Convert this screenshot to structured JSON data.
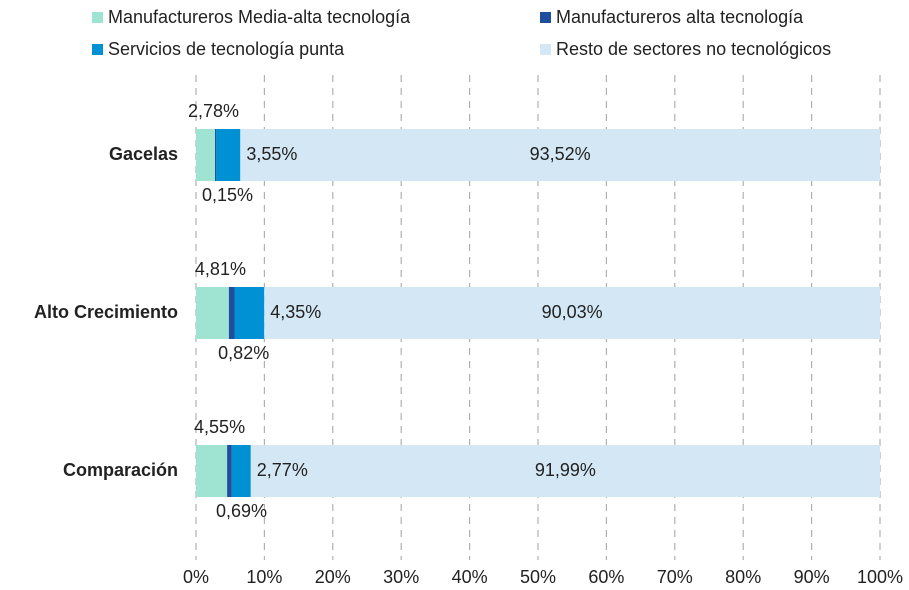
{
  "chart_data": {
    "type": "stacked_barh",
    "categories": [
      "Gacelas",
      "Alto Crecimiento",
      "Comparación"
    ],
    "series": [
      {
        "name": "Manufactureros Media-alta tecnología",
        "color": "#9fe4d3",
        "values": [
          2.78,
          4.81,
          4.55
        ],
        "value_labels": [
          "2,78%",
          "4,81%",
          "4,55%"
        ]
      },
      {
        "name": "Manufactureros alta tecnología",
        "color": "#1f4e9c",
        "values": [
          0.15,
          0.82,
          0.69
        ],
        "value_labels": [
          "0,15%",
          "0,82%",
          "0,69%"
        ]
      },
      {
        "name": "Servicios de tecnología punta",
        "color": "#0091d5",
        "values": [
          3.55,
          4.35,
          2.77
        ],
        "value_labels": [
          "3,55%",
          "4,35%",
          "2,77%"
        ]
      },
      {
        "name": "Resto de sectores no tecnológicos",
        "color": "#d3e7f5",
        "values": [
          93.52,
          90.03,
          91.99
        ],
        "value_labels": [
          "93,52%",
          "90,03%",
          "91,99%"
        ]
      }
    ],
    "xlim": [
      0,
      100
    ],
    "xticks": [
      {
        "value": 0,
        "label": "0%"
      },
      {
        "value": 10,
        "label": "10%"
      },
      {
        "value": 20,
        "label": "20%"
      },
      {
        "value": 30,
        "label": "30%"
      },
      {
        "value": 40,
        "label": "40%"
      },
      {
        "value": 50,
        "label": "50%"
      },
      {
        "value": 60,
        "label": "60%"
      },
      {
        "value": 70,
        "label": "70%"
      },
      {
        "value": 80,
        "label": "80%"
      },
      {
        "value": 90,
        "label": "90%"
      },
      {
        "value": 100,
        "label": "100%"
      }
    ],
    "grid": true
  }
}
